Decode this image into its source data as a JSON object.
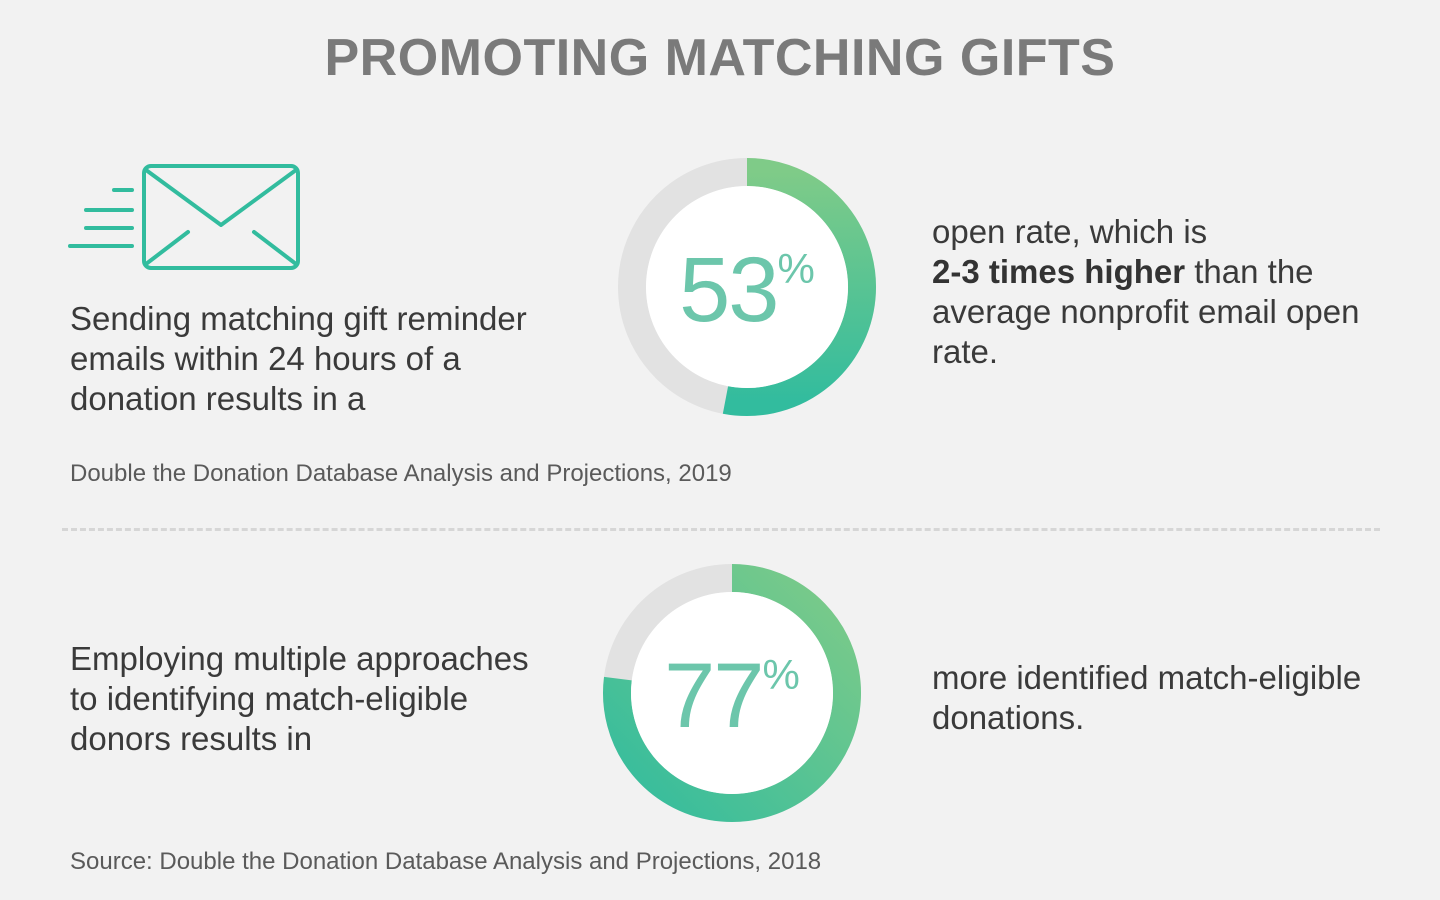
{
  "title": "PROMOTING MATCHING GIFTS",
  "colors": {
    "accent_light": "#7fcb88",
    "accent_dark": "#32bc9e",
    "track": "#e2e2e2",
    "number": "#6cc6ab"
  },
  "icons": {
    "email": "envelope-speed-icon"
  },
  "section1": {
    "lead_text": "Sending matching gift reminder emails within 24 hours of a donation results in a",
    "result_prefix": "open rate, which is",
    "result_bold": "2-3 times higher",
    "result_suffix": "than the average nonprofit email open rate.",
    "source": "Double the Donation Database Analysis and Projections, 2019"
  },
  "section2": {
    "lead_text": "Employing multiple approaches to identifying match-eligible donors results in",
    "result_text": "more identified match-eligible donations.",
    "source": "Source: Double the Donation Database Analysis and Projections, 2018"
  },
  "chart_data": [
    {
      "type": "pie",
      "variant": "donut",
      "value": 53,
      "unit": "%",
      "label_number": "53",
      "label_unit": "%"
    },
    {
      "type": "pie",
      "variant": "donut",
      "value": 77,
      "unit": "%",
      "label_number": "77",
      "label_unit": "%"
    }
  ]
}
